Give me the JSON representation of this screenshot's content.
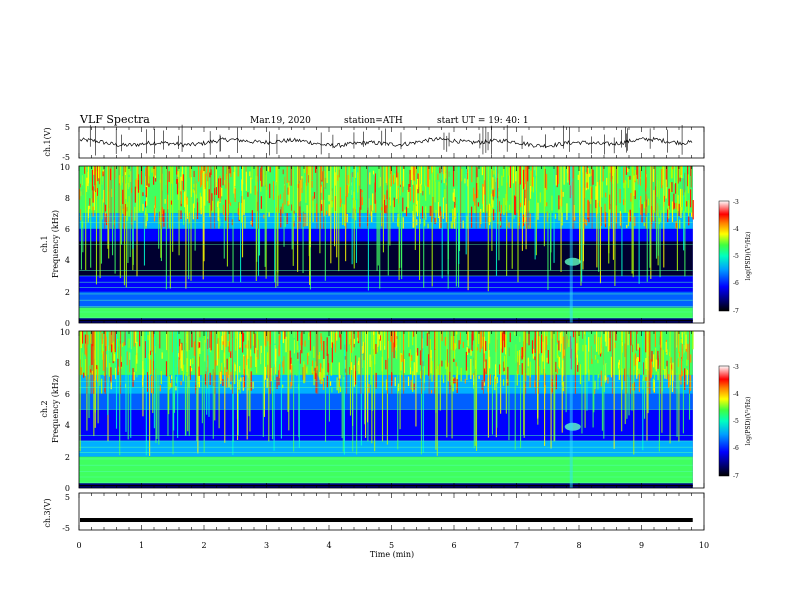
{
  "header": {
    "title": "VLF  Spectra",
    "date": "Mar.19, 2020",
    "station": "station=ATH",
    "start": "start  UT  =   19: 40: 1"
  },
  "colors": {
    "waveform": "#000000",
    "frame": "#000000",
    "colormap": [
      "#000040",
      "#0000ff",
      "#00a0ff",
      "#00ffc0",
      "#60ff40",
      "#ffff00",
      "#ff8000",
      "#ff0000",
      "#ffffff"
    ]
  },
  "chart_data": [
    {
      "type": "line",
      "name": "ch1-waveform",
      "ylabel": "ch.1(V)",
      "xlim": [
        0,
        10
      ],
      "ylim": [
        -5,
        5
      ],
      "yticks": [
        "5",
        "-5"
      ],
      "mean_level_v": 0
    },
    {
      "type": "heatmap",
      "name": "ch1-spectrogram",
      "ylabel": "ch.1\nFrequency  (kHz)",
      "ylabel_lines": [
        "ch.1",
        "Frequency  (kHz)"
      ],
      "xlim": [
        0,
        10
      ],
      "ylim_khz": [
        0,
        10
      ],
      "yticks": [
        "0",
        "2",
        "4",
        "6",
        "8",
        "10"
      ],
      "colorbar_label": "log(PSD)(V²/Hz)",
      "colorbar_range": [
        -7,
        -3
      ],
      "colorbar_ticks": [
        "-3",
        "-4",
        "-5",
        "-6",
        "-7"
      ],
      "data_end_min": 9.82
    },
    {
      "type": "heatmap",
      "name": "ch2-spectrogram",
      "ylabel": "ch.2\nFrequency  (kHz)",
      "ylabel_lines": [
        "ch.2",
        "Frequency  (kHz)"
      ],
      "xlim": [
        0,
        10
      ],
      "ylim_khz": [
        0,
        10
      ],
      "yticks": [
        "0",
        "2",
        "4",
        "6",
        "8",
        "10"
      ],
      "colorbar_label": "log(PSD)(V²/Hz)",
      "colorbar_range": [
        -7,
        -3
      ],
      "colorbar_ticks": [
        "-3",
        "-4",
        "-5",
        "-6",
        "-7"
      ],
      "data_end_min": 9.82
    },
    {
      "type": "line",
      "name": "ch3-waveform",
      "ylabel": "ch.3(V)",
      "xlim": [
        0,
        10
      ],
      "ylim": [
        -5,
        5
      ],
      "yticks": [
        "5",
        "-5"
      ],
      "mean_level_v": -2.3
    }
  ],
  "xaxis": {
    "label": "Time  (min)",
    "ticks": [
      "0",
      "1",
      "2",
      "3",
      "4",
      "5",
      "6",
      "7",
      "8",
      "9",
      "10"
    ]
  }
}
